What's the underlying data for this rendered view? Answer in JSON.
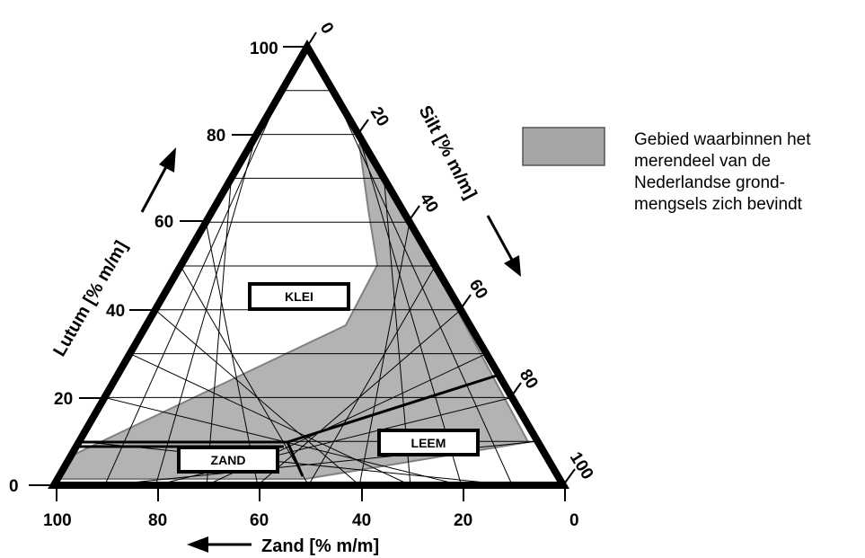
{
  "diagram": {
    "axes": {
      "clay": {
        "title": "Lutum [% m/m]",
        "ticks": [
          "0",
          "20",
          "40",
          "60",
          "80",
          "100"
        ]
      },
      "silt": {
        "title": "Silt [% m/m]",
        "ticks": [
          "0",
          "20",
          "40",
          "60",
          "80",
          "100"
        ]
      },
      "sand": {
        "title": "Zand [% m/m]",
        "ticks": [
          "100",
          "80",
          "60",
          "40",
          "20",
          "0"
        ]
      }
    },
    "regions": {
      "klei": "KLEI",
      "zand": "ZAND",
      "leem": "LEEM"
    },
    "colors": {
      "shaded_area": "#b3b3b3",
      "outline": "#000000",
      "grid": "#000000",
      "shaded_border": "#808080"
    }
  },
  "legend": {
    "swatch_color": "#a6a6a6",
    "lines": [
      "Gebied waarbinnen het",
      "merendeel van de",
      "Nederlandse grond-",
      "mengsels zich bevindt"
    ]
  }
}
